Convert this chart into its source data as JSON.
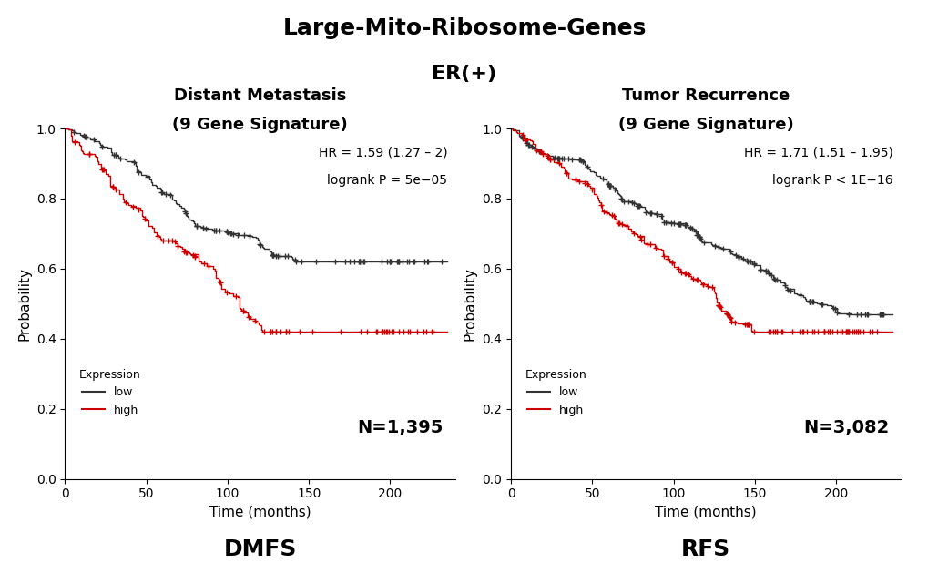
{
  "title": "Large-Mito-Ribosome-Genes",
  "subtitle": "ER(+)",
  "title_fontsize": 18,
  "subtitle_fontsize": 16,
  "background_color": "#ffffff",
  "left_plot": {
    "title_line1": "Distant Metastasis",
    "title_line2": "(9 Gene Signature)",
    "hr_text": "HR = 1.59 (1.27 – 2)",
    "p_text": "logrank P = 5e−05",
    "n_text": "N=1,395",
    "xlabel": "Time (months)",
    "ylabel": "Probability",
    "footer": "DMFS",
    "xlim": [
      0,
      240
    ],
    "ylim": [
      0.0,
      1.0
    ],
    "xticks": [
      0,
      50,
      100,
      150,
      200
    ],
    "yticks": [
      0.0,
      0.2,
      0.4,
      0.6,
      0.8,
      1.0
    ]
  },
  "right_plot": {
    "title_line1": "Tumor Recurrence",
    "title_line2": "(9 Gene Signature)",
    "hr_text": "HR = 1.71 (1.51 – 1.95)",
    "p_text": "logrank P < 1E−16",
    "n_text": "N=3,082",
    "xlabel": "Time (months)",
    "ylabel": "Probability",
    "footer": "RFS",
    "xlim": [
      0,
      240
    ],
    "ylim": [
      0.0,
      1.0
    ],
    "xticks": [
      0,
      50,
      100,
      150,
      200
    ],
    "yticks": [
      0.0,
      0.2,
      0.4,
      0.6,
      0.8,
      1.0
    ]
  },
  "low_color": "#333333",
  "high_color": "#cc0000",
  "legend_title": "Expression",
  "legend_low": "low",
  "legend_high": "high"
}
